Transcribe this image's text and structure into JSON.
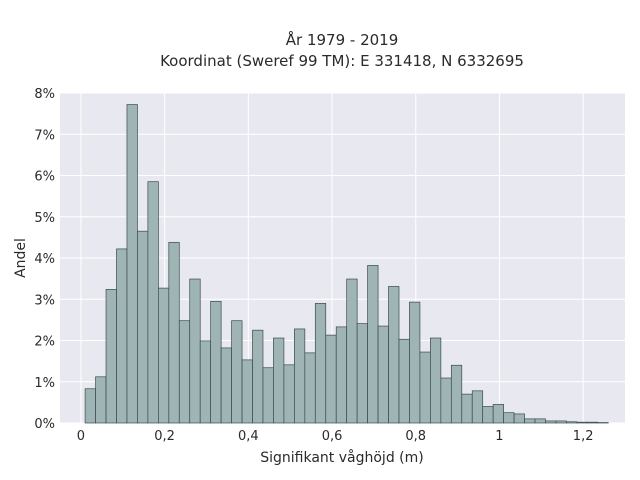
{
  "chart_data": {
    "type": "bar",
    "title_lines": [
      "År 1979 - 2019",
      "Koordinat (Sweref 99 TM): E 331418, N 6332695"
    ],
    "xlabel": "Signifikant våghöjd (m)",
    "ylabel": "Andel",
    "xlim": [
      -0.05,
      1.3
    ],
    "ylim": [
      0,
      8
    ],
    "x_ticks": [
      {
        "value": 0,
        "label": "0"
      },
      {
        "value": 0.2,
        "label": "0,2"
      },
      {
        "value": 0.4,
        "label": "0,4"
      },
      {
        "value": 0.6,
        "label": "0,6"
      },
      {
        "value": 0.8,
        "label": "0,8"
      },
      {
        "value": 1.0,
        "label": "1"
      },
      {
        "value": 1.2,
        "label": "1,2"
      }
    ],
    "y_ticks": [
      {
        "value": 0,
        "label": "0%"
      },
      {
        "value": 1,
        "label": "1%"
      },
      {
        "value": 2,
        "label": "2%"
      },
      {
        "value": 3,
        "label": "3%"
      },
      {
        "value": 4,
        "label": "4%"
      },
      {
        "value": 5,
        "label": "5%"
      },
      {
        "value": 6,
        "label": "6%"
      },
      {
        "value": 7,
        "label": "7%"
      },
      {
        "value": 8,
        "label": "8%"
      }
    ],
    "bin_width": 0.025,
    "bins_start": [
      0.01,
      0.035,
      0.06,
      0.085,
      0.11,
      0.135,
      0.16,
      0.185,
      0.21,
      0.235,
      0.26,
      0.285,
      0.31,
      0.335,
      0.36,
      0.385,
      0.41,
      0.435,
      0.46,
      0.485,
      0.51,
      0.535,
      0.56,
      0.585,
      0.61,
      0.635,
      0.66,
      0.685,
      0.71,
      0.735,
      0.76,
      0.785,
      0.81,
      0.835,
      0.86,
      0.885,
      0.91,
      0.935,
      0.96,
      0.985,
      1.01,
      1.035,
      1.06,
      1.085,
      1.11,
      1.135,
      1.16,
      1.185,
      1.21,
      1.235
    ],
    "values": [
      0.83,
      1.12,
      3.24,
      4.22,
      7.72,
      4.65,
      5.85,
      3.27,
      4.38,
      2.48,
      3.49,
      1.99,
      2.95,
      1.82,
      2.48,
      1.53,
      2.25,
      1.34,
      2.06,
      1.41,
      2.28,
      1.7,
      2.9,
      2.13,
      2.33,
      3.49,
      2.41,
      3.82,
      2.35,
      3.31,
      2.03,
      2.93,
      1.72,
      2.06,
      1.09,
      1.4,
      0.7,
      0.78,
      0.4,
      0.45,
      0.25,
      0.22,
      0.1,
      0.1,
      0.05,
      0.05,
      0.03,
      0.02,
      0.02,
      0.01
    ],
    "grid": true,
    "colors": {
      "bar_fill": "#9fb5b5",
      "bar_stroke": "#3a4a4a",
      "plot_bg": "#e8e8f0",
      "grid": "#ffffff"
    }
  }
}
